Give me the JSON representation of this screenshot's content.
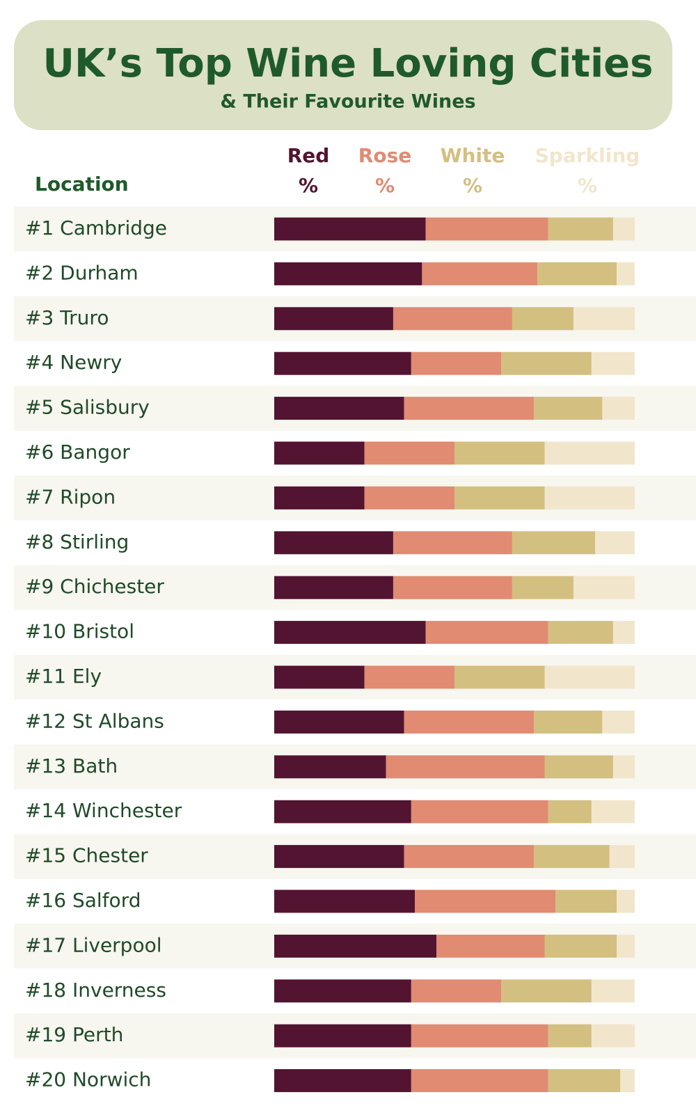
{
  "chart_data": {
    "type": "stacked_bar",
    "title": "UK’s Top Wine Loving Cities",
    "subtitle": "& Their Favourite Wines",
    "category_label": "Location",
    "unit": "%",
    "categories": [
      "#1  Cambridge",
      "#2  Durham",
      "#3  Truro",
      "#4  Newry",
      "#5  Salisbury",
      "#6  Bangor",
      "#7  Ripon",
      "#8  Stirling",
      "#9  Chichester",
      "#10 Bristol",
      "#11 Ely",
      "#12  St Albans",
      "#13  Bath",
      "#14  Winchester",
      "#15  Chester",
      "#16  Salford",
      "#17  Liverpool",
      "#18  Inverness",
      "#19  Perth",
      "#20 Norwich"
    ],
    "series": [
      {
        "name": "Red",
        "color": "#521430",
        "values": [
          42,
          41,
          33,
          38,
          36,
          25,
          25,
          33,
          33,
          42,
          25,
          36,
          31,
          38,
          36,
          39,
          45,
          38,
          38,
          38
        ]
      },
      {
        "name": "Rose",
        "color": "#e08b72",
        "values": [
          34,
          32,
          33,
          25,
          36,
          25,
          25,
          33,
          33,
          34,
          25,
          36,
          44,
          38,
          36,
          39,
          30,
          25,
          38,
          38
        ]
      },
      {
        "name": "White",
        "color": "#d3bf80",
        "values": [
          18,
          22,
          17,
          25,
          19,
          25,
          25,
          23,
          17,
          18,
          25,
          19,
          19,
          12,
          21,
          17,
          20,
          25,
          12,
          20
        ]
      },
      {
        "name": "Sparkling",
        "color": "#f1e6cc",
        "values": [
          6,
          5,
          17,
          12,
          9,
          25,
          25,
          11,
          17,
          6,
          25,
          9,
          6,
          12,
          7,
          5,
          5,
          12,
          12,
          4
        ]
      }
    ],
    "xlim": [
      0,
      100
    ]
  }
}
